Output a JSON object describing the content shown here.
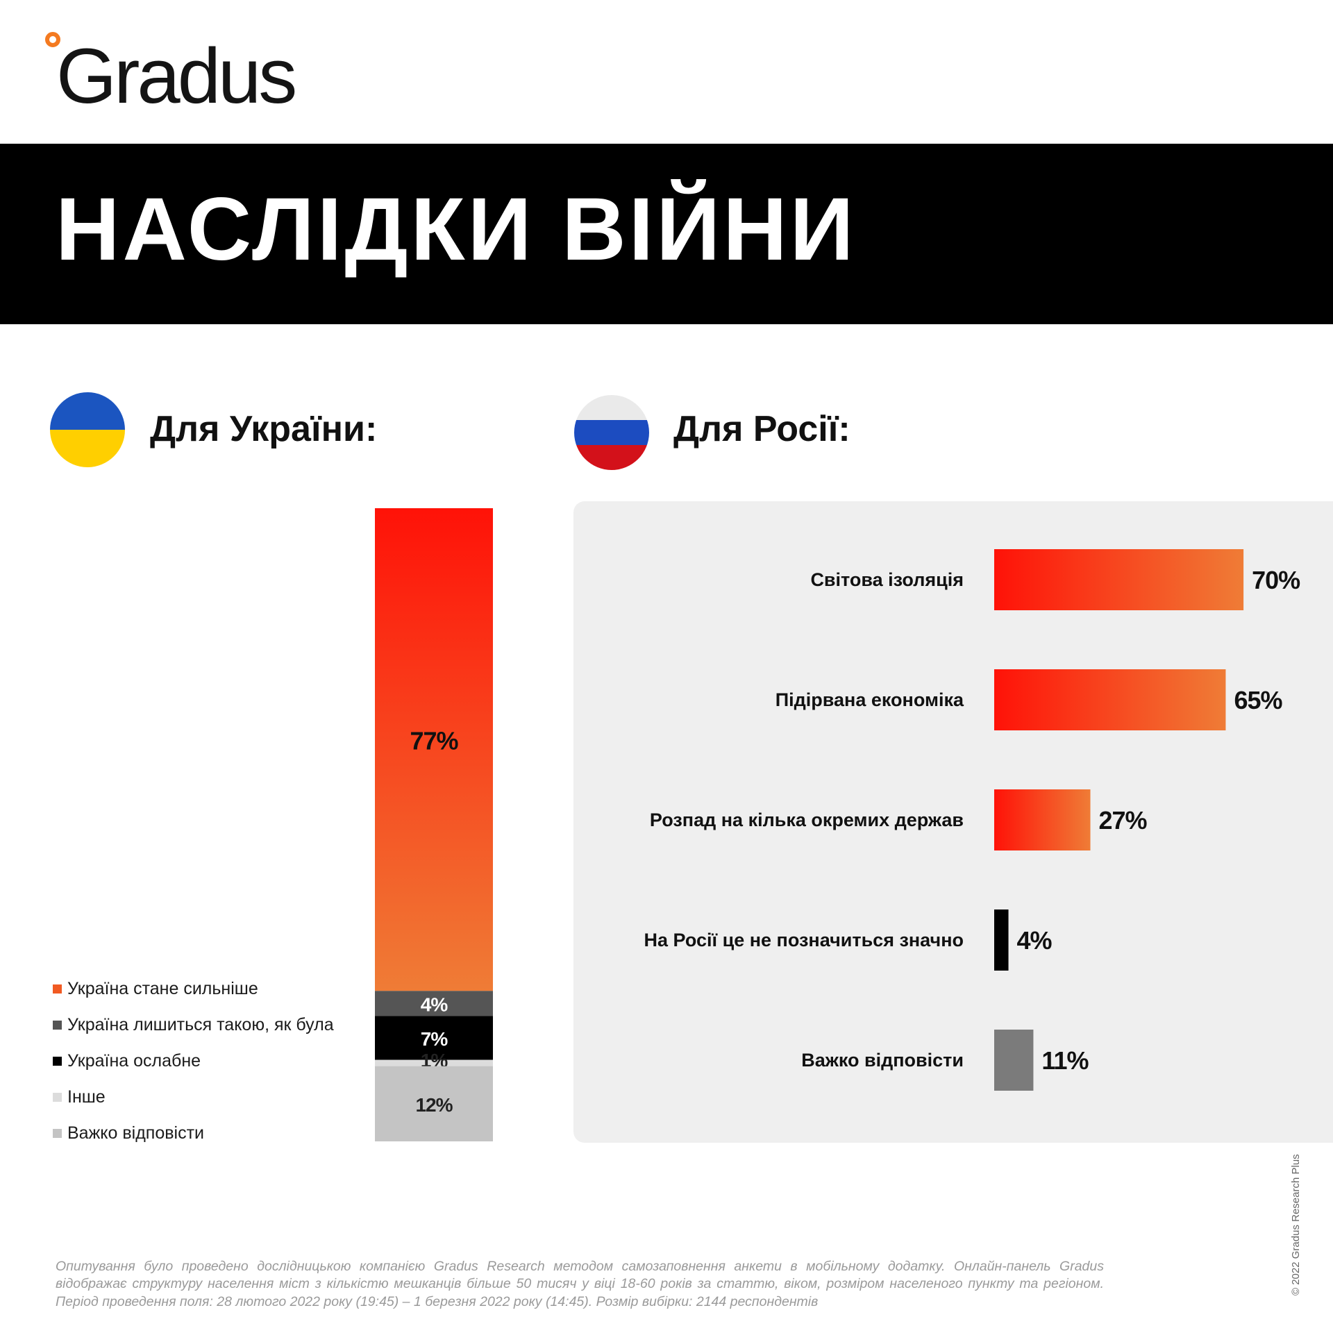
{
  "logo": {
    "text": "Gradus"
  },
  "banner": {
    "title": "НАСЛІДКИ ВІЙНИ"
  },
  "sections": {
    "ukraine_title": "Для України:",
    "russia_title": "Для Росії:"
  },
  "colors": {
    "orange_top": "#ff1208",
    "orange_bottom": "#ef7c36",
    "dark_gray": "#555555",
    "black": "#000000",
    "light_gray": "#dcdcdc",
    "mid_gray": "#c4c4c4",
    "gray_bar": "#7b7b7b",
    "panel_bg": "#efefef"
  },
  "chart_data": [
    {
      "type": "bar",
      "subtype": "stacked-100",
      "title": "Для України:",
      "categories": [
        ""
      ],
      "series": [
        {
          "name": "Україна стане сильніше",
          "values": [
            77
          ],
          "color": "#f15a22"
        },
        {
          "name": "Україна лишиться такою, як була",
          "values": [
            4
          ],
          "color": "#555555"
        },
        {
          "name": "Україна ослабне",
          "values": [
            7
          ],
          "color": "#000000"
        },
        {
          "name": "Інше",
          "values": [
            1
          ],
          "color": "#dcdcdc"
        },
        {
          "name": "Важко відповісти",
          "values": [
            12
          ],
          "color": "#c4c4c4"
        }
      ],
      "data_labels": [
        "77%",
        "4%",
        "7%",
        "1%",
        "12%"
      ],
      "legend_position": "left"
    },
    {
      "type": "bar",
      "orientation": "horizontal",
      "title": "Для Росії:",
      "categories": [
        "Світова ізоляція",
        "Підірвана економіка",
        "Розпад на кілька окремих держав",
        "На Росії це не позначиться значно",
        "Важко відповісти"
      ],
      "values": [
        70,
        65,
        27,
        4,
        11
      ],
      "data_labels": [
        "70%",
        "65%",
        "27%",
        "4%",
        "11%"
      ],
      "bar_styles": [
        "gradient",
        "gradient",
        "gradient",
        "black",
        "gray"
      ],
      "xlim": [
        0,
        100
      ]
    }
  ],
  "footnote": "Опитування було проведено дослідницькою компанією Gradus Research методом самозаповнення анкети в мобільному додатку. Онлайн-панель Gradus відображає структуру населення міст з кількістю мешканців більше 50 тисяч у віці 18-60 років за статтю, віком, розміром населеного пункту та регіоном. Період проведення поля: 28 лютого 2022 року (19:45) – 1 березня 2022 року (14:45). Розмір вибірки: 2144 респондентів",
  "copyright": "© 2022 Gradus Research Plus"
}
